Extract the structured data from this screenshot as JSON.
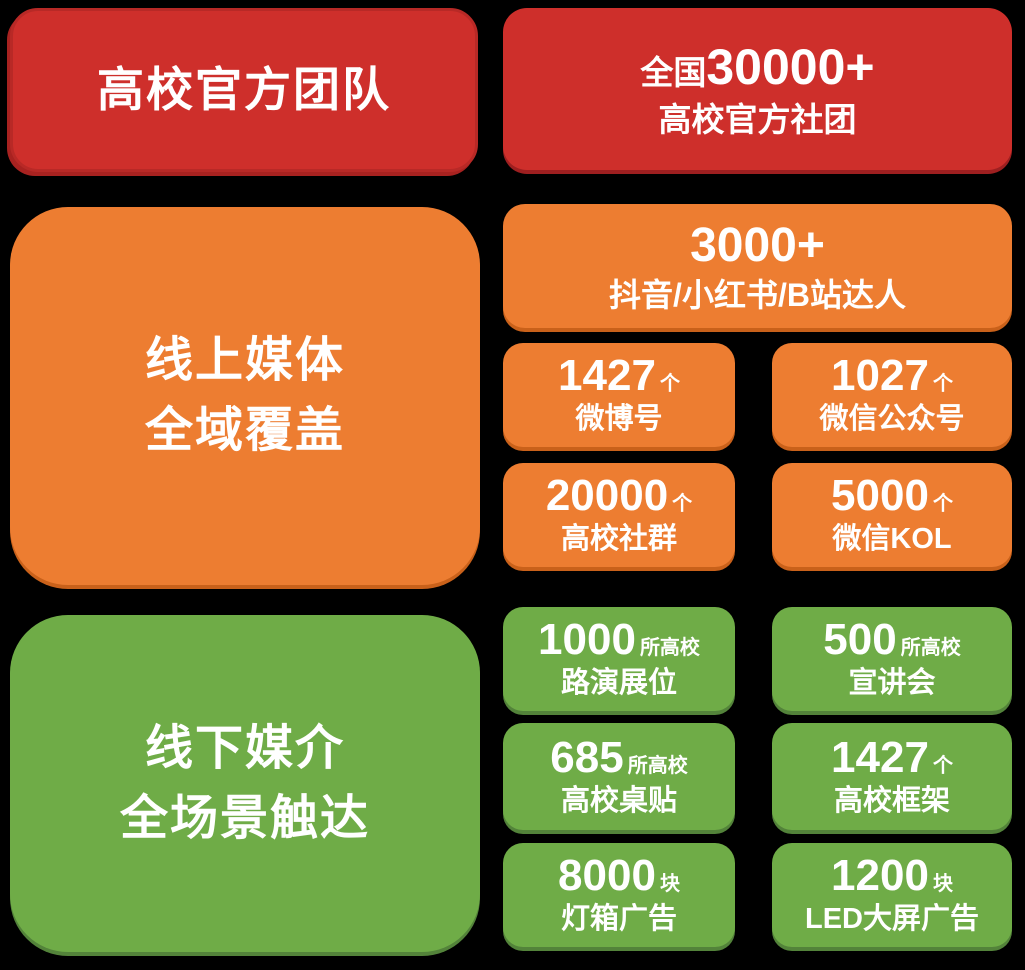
{
  "colors": {
    "red": "#CE2F2B",
    "red_dark": "#9E1F20",
    "orange": "#ED7D31",
    "orange_dark": "#C9611A",
    "green": "#6FAC47",
    "green_dark": "#53833A",
    "text": "#FFFFFF"
  },
  "team": {
    "title": "高校官方团队",
    "stat": {
      "prefix": "全国",
      "number": "30000+",
      "label": "高校官方社团"
    }
  },
  "online": {
    "title_line1": "线上媒体",
    "title_line2": "全域覆盖",
    "wide": {
      "number": "3000+",
      "label": "抖音/小红书/B站达人"
    },
    "stats": [
      {
        "number": "1427",
        "unit": "个",
        "label": "微博号"
      },
      {
        "number": "1027",
        "unit": "个",
        "label": "微信公众号"
      },
      {
        "number": "20000",
        "unit": "个",
        "label": "高校社群"
      },
      {
        "number": "5000",
        "unit": "个",
        "label": "微信KOL"
      }
    ]
  },
  "offline": {
    "title_line1": "线下媒介",
    "title_line2": "全场景触达",
    "stats": [
      {
        "number": "1000",
        "unit": "所高校",
        "label": "路演展位"
      },
      {
        "number": "500",
        "unit": "所高校",
        "label": "宣讲会"
      },
      {
        "number": "685",
        "unit": "所高校",
        "label": "高校桌贴"
      },
      {
        "number": "1427",
        "unit": "个",
        "label": "高校框架"
      },
      {
        "number": "8000",
        "unit": "块",
        "label": "灯箱广告"
      },
      {
        "number": "1200",
        "unit": "块",
        "label": "LED大屏广告"
      }
    ]
  }
}
